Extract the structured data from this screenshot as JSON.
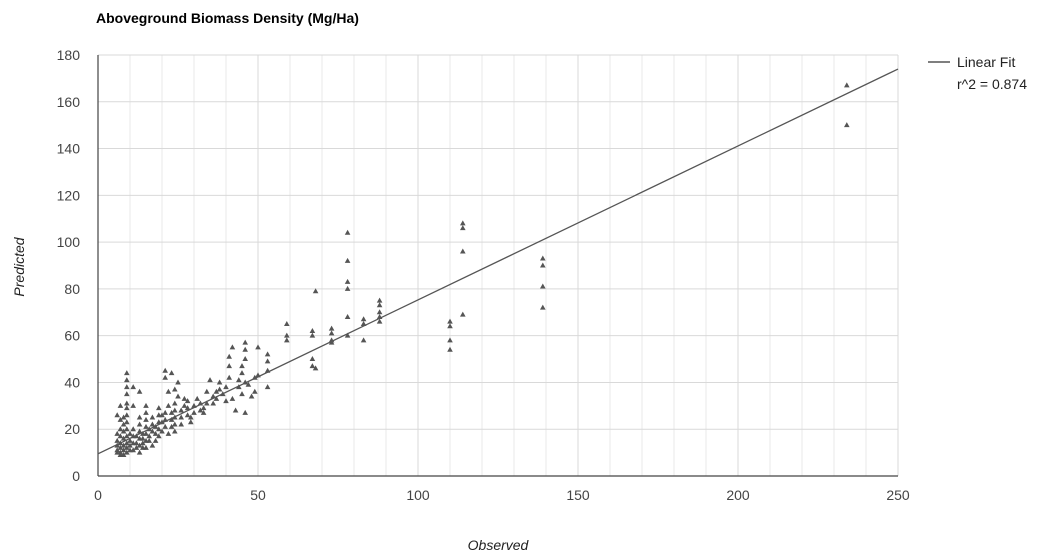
{
  "chart_data": {
    "type": "scatter",
    "title": "Aboveground Biomass Density (Mg/Ha)",
    "xlabel": "Observed",
    "ylabel": "Predicted",
    "xlim": [
      0,
      250
    ],
    "ylim": [
      0,
      180
    ],
    "xticks": [
      0,
      50,
      100,
      150,
      200,
      250
    ],
    "yticks": [
      0,
      20,
      40,
      60,
      80,
      100,
      120,
      140,
      160,
      180
    ],
    "grid": true,
    "legend_position": "top-right",
    "colors": {
      "points": "#555555",
      "fit_line": "#555555",
      "grid": "#d9d9d9",
      "axis": "#444444"
    },
    "fit": {
      "name": "Linear Fit",
      "annotation": "r^2 = 0.874",
      "intercept": 9.5,
      "slope": 0.658
    },
    "series": [
      {
        "marker": "triangle",
        "points": [
          [
            234,
            167
          ],
          [
            234,
            150
          ],
          [
            139,
            93
          ],
          [
            139,
            90
          ],
          [
            139,
            81
          ],
          [
            139,
            72
          ],
          [
            114,
            108
          ],
          [
            114,
            106
          ],
          [
            114,
            96
          ],
          [
            114,
            69
          ],
          [
            110,
            66
          ],
          [
            110,
            64
          ],
          [
            110,
            58
          ],
          [
            110,
            54
          ],
          [
            88,
            75
          ],
          [
            88,
            73
          ],
          [
            88,
            70
          ],
          [
            88,
            68
          ],
          [
            88,
            66
          ],
          [
            83,
            67
          ],
          [
            83,
            65
          ],
          [
            83,
            58
          ],
          [
            78,
            104
          ],
          [
            78,
            92
          ],
          [
            78,
            83
          ],
          [
            78,
            80
          ],
          [
            78,
            68
          ],
          [
            78,
            60
          ],
          [
            73,
            63
          ],
          [
            73,
            61
          ],
          [
            73,
            58
          ],
          [
            73,
            57
          ],
          [
            68,
            79
          ],
          [
            67,
            62
          ],
          [
            67,
            60
          ],
          [
            67,
            50
          ],
          [
            67,
            47
          ],
          [
            68,
            46
          ],
          [
            59,
            65
          ],
          [
            59,
            60
          ],
          [
            59,
            58
          ],
          [
            53,
            52
          ],
          [
            53,
            49
          ],
          [
            53,
            45
          ],
          [
            53,
            38
          ],
          [
            50,
            55
          ],
          [
            50,
            43
          ],
          [
            49,
            42
          ],
          [
            49,
            36
          ],
          [
            48,
            34
          ],
          [
            46,
            57
          ],
          [
            46,
            54
          ],
          [
            46,
            50
          ],
          [
            45,
            47
          ],
          [
            45,
            44
          ],
          [
            46,
            40
          ],
          [
            44,
            38
          ],
          [
            45,
            35
          ],
          [
            46,
            27
          ],
          [
            42,
            55
          ],
          [
            41,
            51
          ],
          [
            41,
            47
          ],
          [
            41,
            42
          ],
          [
            40,
            38
          ],
          [
            42,
            33
          ],
          [
            43,
            28
          ],
          [
            38,
            40
          ],
          [
            38,
            37
          ],
          [
            37,
            36
          ],
          [
            37,
            33
          ],
          [
            35,
            41
          ],
          [
            34,
            36
          ],
          [
            34,
            31
          ],
          [
            33,
            29
          ],
          [
            33,
            27
          ],
          [
            31,
            33
          ],
          [
            30,
            30
          ],
          [
            30,
            27
          ],
          [
            29,
            25
          ],
          [
            29,
            23
          ],
          [
            27,
            33
          ],
          [
            27,
            30
          ],
          [
            26,
            28
          ],
          [
            26,
            25
          ],
          [
            26,
            22
          ],
          [
            25,
            40
          ],
          [
            24,
            37
          ],
          [
            25,
            34
          ],
          [
            24,
            31
          ],
          [
            24,
            28
          ],
          [
            24,
            25
          ],
          [
            24,
            22
          ],
          [
            24,
            19
          ],
          [
            23,
            44
          ],
          [
            21,
            45
          ],
          [
            21,
            42
          ],
          [
            22,
            36
          ],
          [
            22,
            30
          ],
          [
            21,
            27
          ],
          [
            21,
            24
          ],
          [
            21,
            21
          ],
          [
            22,
            18
          ],
          [
            19,
            29
          ],
          [
            19,
            26
          ],
          [
            19,
            23
          ],
          [
            19,
            20
          ],
          [
            19,
            17
          ],
          [
            17,
            25
          ],
          [
            17,
            22
          ],
          [
            17,
            19
          ],
          [
            16,
            15
          ],
          [
            17,
            13
          ],
          [
            15,
            30
          ],
          [
            15,
            27
          ],
          [
            15,
            24
          ],
          [
            15,
            21
          ],
          [
            15,
            18
          ],
          [
            15,
            15
          ],
          [
            15,
            12
          ],
          [
            13,
            36
          ],
          [
            13,
            25
          ],
          [
            13,
            22
          ],
          [
            13,
            19
          ],
          [
            13,
            16
          ],
          [
            13,
            13
          ],
          [
            13,
            10
          ],
          [
            11,
            38
          ],
          [
            11,
            30
          ],
          [
            11,
            20
          ],
          [
            11,
            17
          ],
          [
            11,
            14
          ],
          [
            11,
            11
          ],
          [
            9,
            44
          ],
          [
            9,
            41
          ],
          [
            9,
            38
          ],
          [
            9,
            35
          ],
          [
            9,
            31
          ],
          [
            9,
            29
          ],
          [
            9,
            26
          ],
          [
            9,
            23
          ],
          [
            9,
            20
          ],
          [
            9,
            17
          ],
          [
            9,
            14
          ],
          [
            9,
            12
          ],
          [
            9,
            10
          ],
          [
            8,
            25
          ],
          [
            8,
            22
          ],
          [
            8,
            19
          ],
          [
            8,
            16
          ],
          [
            8,
            13
          ],
          [
            8,
            11
          ],
          [
            8,
            9
          ],
          [
            7,
            30
          ],
          [
            7,
            24
          ],
          [
            7,
            20
          ],
          [
            7,
            17
          ],
          [
            7,
            14
          ],
          [
            7,
            12
          ],
          [
            7,
            10
          ],
          [
            7,
            9
          ],
          [
            6,
            26
          ],
          [
            6,
            18
          ],
          [
            6,
            15
          ],
          [
            6,
            13
          ],
          [
            6,
            11
          ],
          [
            6,
            10
          ],
          [
            10,
            18
          ],
          [
            10,
            15
          ],
          [
            10,
            13
          ],
          [
            10,
            11
          ],
          [
            12,
            17
          ],
          [
            12,
            14
          ],
          [
            12,
            12
          ],
          [
            14,
            18
          ],
          [
            14,
            16
          ],
          [
            14,
            14
          ],
          [
            14,
            12
          ],
          [
            16,
            20
          ],
          [
            16,
            17
          ],
          [
            18,
            21
          ],
          [
            18,
            18
          ],
          [
            18,
            15
          ],
          [
            20,
            19
          ],
          [
            20,
            23
          ],
          [
            20,
            26
          ],
          [
            23,
            27
          ],
          [
            23,
            24
          ],
          [
            23,
            21
          ],
          [
            28,
            26
          ],
          [
            28,
            29
          ],
          [
            28,
            32
          ],
          [
            32,
            31
          ],
          [
            32,
            28
          ],
          [
            36,
            34
          ],
          [
            36,
            31
          ],
          [
            39,
            35
          ],
          [
            40,
            32
          ],
          [
            44,
            41
          ],
          [
            47,
            39
          ]
        ]
      }
    ]
  }
}
